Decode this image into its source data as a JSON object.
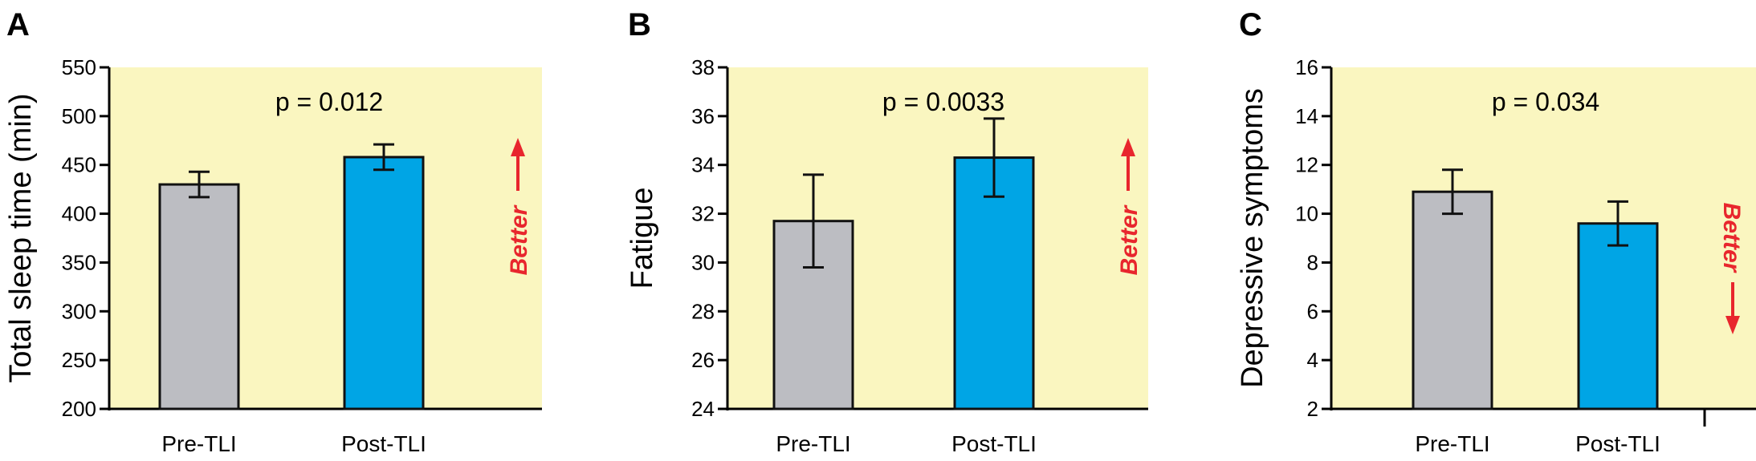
{
  "chart_data": [
    {
      "type": "bar",
      "panel": "A",
      "categories": [
        "Pre-TLI",
        "Post-TLI"
      ],
      "values": [
        430,
        458
      ],
      "errors": [
        13,
        13
      ],
      "ylabel": "Total sleep time (min)",
      "ylim": [
        200,
        550
      ],
      "yticks": [
        200,
        250,
        300,
        350,
        400,
        450,
        500,
        550
      ],
      "pvalue": "p = 0.012",
      "better_label": "Better",
      "better_direction": "up",
      "colors": [
        "#bcbdc2",
        "#00a5e5"
      ]
    },
    {
      "type": "bar",
      "panel": "B",
      "categories": [
        "Pre-TLI",
        "Post-TLI"
      ],
      "values": [
        31.7,
        34.3
      ],
      "errors": [
        1.9,
        1.6
      ],
      "ylabel": "Fatigue",
      "ylim": [
        24,
        38
      ],
      "yticks": [
        24,
        26,
        28,
        30,
        32,
        34,
        36,
        38
      ],
      "pvalue": "p = 0.0033",
      "better_label": "Better",
      "better_direction": "up",
      "colors": [
        "#bcbdc2",
        "#00a5e5"
      ]
    },
    {
      "type": "bar",
      "panel": "C",
      "categories": [
        "Pre-TLI",
        "Post-TLI"
      ],
      "values": [
        10.9,
        9.6
      ],
      "errors": [
        0.9,
        0.9
      ],
      "ylabel": "Depressive symptoms",
      "ylim": [
        2,
        16
      ],
      "yticks": [
        2,
        4,
        6,
        8,
        10,
        12,
        14,
        16
      ],
      "pvalue": "p = 0.034",
      "better_label": "Better",
      "better_direction": "down",
      "colors": [
        "#bcbdc2",
        "#00a5e5"
      ]
    }
  ],
  "style": {
    "plot_background": "#faf6c0",
    "better_color": "#e8262d",
    "axis_color": "#000000"
  }
}
